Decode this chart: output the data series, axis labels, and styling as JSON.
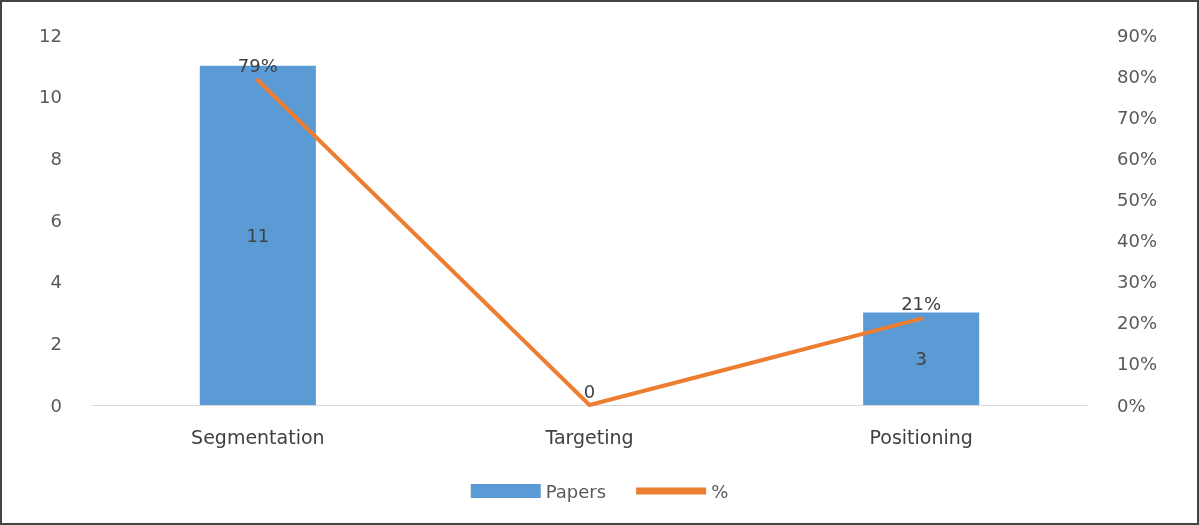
{
  "chart_data": {
    "type": "bar",
    "categories": [
      "Segmentation",
      "Targeting",
      "Positioning"
    ],
    "series": [
      {
        "name": "Papers",
        "color": "#5b9bd5",
        "values": [
          11,
          0,
          3
        ],
        "value_labels": [
          "11",
          "0",
          "3"
        ]
      },
      {
        "name": "%",
        "type": "line",
        "axis": "y2",
        "color": "#ed7d31",
        "values": [
          79,
          0,
          21
        ],
        "value_labels": [
          "79%",
          null,
          "21%"
        ]
      }
    ],
    "ylim": [
      0,
      12
    ],
    "yticks": [
      0,
      2,
      4,
      6,
      8,
      10,
      12
    ],
    "y2lim": [
      0,
      90
    ],
    "y2ticks": [
      {
        "value": 0,
        "label": "0%"
      },
      {
        "value": 10,
        "label": "10%"
      },
      {
        "value": 20,
        "label": "20%"
      },
      {
        "value": 30,
        "label": "30%"
      },
      {
        "value": 40,
        "label": "40%"
      },
      {
        "value": 50,
        "label": "50%"
      },
      {
        "value": 60,
        "label": "60%"
      },
      {
        "value": 70,
        "label": "70%"
      },
      {
        "value": 80,
        "label": "80%"
      },
      {
        "value": 90,
        "label": "90%"
      }
    ],
    "grid": false,
    "legend": "bottom",
    "marker": "none",
    "line_style": "solid"
  }
}
